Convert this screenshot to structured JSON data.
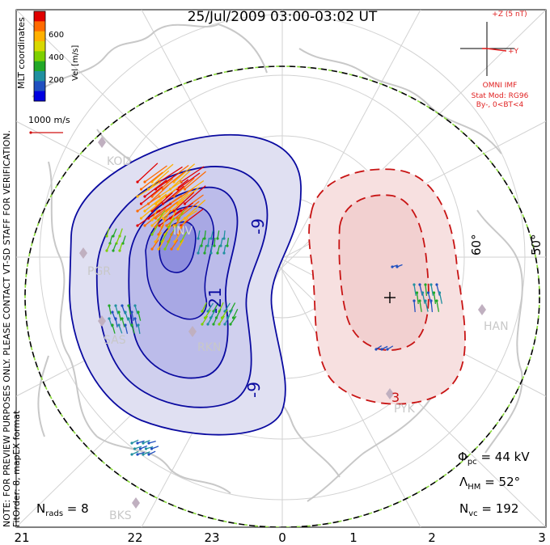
{
  "title": "25/Jul/2009 03:00-03:02 UT",
  "colorbar": {
    "ticks": [
      "600",
      "400",
      "200"
    ],
    "label": "Vel [m/s]",
    "side_label": "MLT coordinates",
    "colors": [
      "#e00000",
      "#ff6a00",
      "#ffb000",
      "#d8d800",
      "#7ed000",
      "#22a828",
      "#2090a0",
      "#2050c0",
      "#0000e0"
    ]
  },
  "scale_vector": {
    "label": "1000 m/s"
  },
  "imf": {
    "z_label": "+Z (5 nT)",
    "y_label": "+Y",
    "source": "OMNI IMF",
    "stat_mod": "Stat Mod: RG96",
    "condition": "By-, 0<BT<4"
  },
  "notes": {
    "line1": "NOTE: FOR PREVIEW PURPOSES ONLY. PLEASE CONTACT VT-SD STAFF FOR VERIFICATION.",
    "line2": "FitOrder: 8, mapEX format"
  },
  "stats": {
    "n_rads": "N",
    "n_rads_sub": "rads",
    "n_rads_val": " = 8",
    "phi": "Φ",
    "phi_sub": "pc",
    "phi_val": " = 44 kV",
    "lambda": "Λ",
    "lambda_sub": "HM",
    "lambda_val": " = 52°",
    "nvc": "N",
    "nvc_sub": "vc",
    "nvc_val": " = 192"
  },
  "contour_labels": {
    "neg_outer": "-9",
    "neg_inner": "-21",
    "neg_lower": "-9",
    "pos": "3"
  },
  "latitudes": {
    "lat60": "60°",
    "lat50": "50°"
  },
  "mlt_ticks": [
    "21",
    "22",
    "23",
    "0",
    "1",
    "2",
    "3"
  ],
  "stations": {
    "kod": "KOD",
    "inv": "INV",
    "pgr": "PGR",
    "sas": "SAS",
    "rkn": "RKN",
    "han": "HAN",
    "pyk": "PYK",
    "bks": "BKS"
  },
  "colors": {
    "negative_contour": "#0a0aa0",
    "positive_contour": "#c81414",
    "imf_red": "#e02020",
    "coast": "#c8c8c8",
    "grid": "#d0d0d0"
  }
}
